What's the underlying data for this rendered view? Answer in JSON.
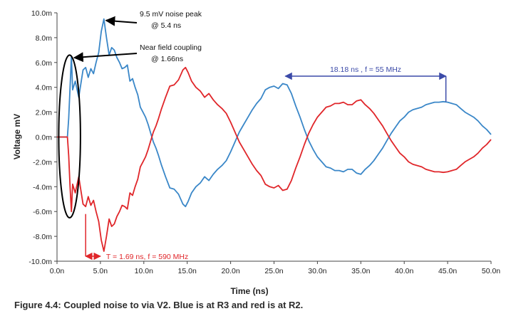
{
  "caption": "Figure 4.4: Coupled noise to via V2. Blue is at R3 and red is at R2.",
  "colors": {
    "blue": "#3a87c8",
    "red": "#e0262a",
    "period_blue": "#3b4aa8",
    "annotation": "#000000"
  },
  "chart_data": {
    "type": "line",
    "xlabel": "Time (ns)",
    "ylabel": "Voltage mV",
    "xlim": [
      0,
      50
    ],
    "ylim": [
      -10,
      10
    ],
    "x_ticks": [
      0,
      5,
      10,
      15,
      20,
      25,
      30,
      35,
      40,
      45,
      50
    ],
    "x_tick_labels": [
      "0.0n",
      "5.0n",
      "10.0n",
      "15.0n",
      "20.0n",
      "25.0n",
      "30.0n",
      "35.0n",
      "40.0n",
      "45.0n",
      "50.0n"
    ],
    "y_ticks": [
      -10,
      -8,
      -6,
      -4,
      -2,
      0,
      2,
      4,
      6,
      8,
      10
    ],
    "y_tick_labels": [
      "-10.0m",
      "-8.0m",
      "-6.0m",
      "-4.0m",
      "-2.0m",
      "0.0m",
      "2.0m",
      "4.0m",
      "6.0m",
      "8.0m",
      "10.0m"
    ],
    "grid": false,
    "series": [
      {
        "color": "#3a87c8",
        "x": [
          0,
          1.2,
          1.35,
          1.5,
          1.66,
          1.8,
          2.1,
          2.5,
          3.0,
          3.3,
          3.6,
          3.9,
          4.2,
          4.5,
          4.8,
          5.1,
          5.4,
          5.7,
          6.0,
          6.3,
          6.6,
          6.9,
          7.2,
          7.5,
          7.8,
          8.1,
          8.4,
          8.7,
          9.0,
          9.3,
          9.6,
          9.9,
          10.2,
          10.5,
          10.8,
          11.1,
          11.4,
          11.7,
          12.0,
          12.5,
          13.0,
          13.5,
          14.0,
          14.5,
          14.8,
          15.1,
          15.5,
          16.0,
          16.5,
          17.0,
          17.5,
          18.0,
          18.5,
          19.0,
          19.5,
          20.0,
          20.5,
          21.0,
          21.5,
          22.0,
          22.5,
          23.0,
          23.5,
          24.0,
          24.5,
          25.0,
          25.5,
          26.0,
          26.5,
          27.0,
          27.5,
          28.0,
          28.5,
          29.0,
          29.5,
          30.0,
          30.5,
          31.0,
          31.5,
          32.0,
          32.5,
          33.0,
          33.5,
          34.0,
          34.5,
          35.0,
          35.5,
          36.0,
          36.5,
          37.0,
          37.5,
          38.0,
          38.5,
          39.0,
          39.5,
          40.0,
          40.5,
          41.0,
          41.5,
          42.0,
          42.5,
          43.0,
          43.5,
          44.0,
          44.5,
          45.0,
          45.5,
          46.0,
          46.5,
          47.0,
          47.5,
          48.0,
          48.5,
          49.0,
          49.5,
          50.0
        ],
        "y": [
          0,
          0,
          1.5,
          4.0,
          6.5,
          3.8,
          4.5,
          3.2,
          5.4,
          5.6,
          4.8,
          5.5,
          5.1,
          6.0,
          6.8,
          8.5,
          9.5,
          8.0,
          6.6,
          7.2,
          7.0,
          6.4,
          6.0,
          5.5,
          5.6,
          5.8,
          4.5,
          4.7,
          4.0,
          3.4,
          2.4,
          2.0,
          1.6,
          1.0,
          0.3,
          -0.4,
          -0.9,
          -1.5,
          -2.2,
          -3.2,
          -4.1,
          -4.2,
          -4.6,
          -5.4,
          -5.6,
          -5.2,
          -4.5,
          -4.0,
          -3.7,
          -3.2,
          -3.5,
          -3.0,
          -2.6,
          -2.3,
          -1.9,
          -1.2,
          -0.4,
          0.4,
          1.0,
          1.6,
          2.2,
          2.7,
          3.1,
          3.8,
          4.0,
          4.1,
          3.9,
          4.3,
          4.2,
          3.5,
          2.5,
          1.6,
          0.6,
          -0.3,
          -1.0,
          -1.6,
          -2.0,
          -2.4,
          -2.5,
          -2.7,
          -2.7,
          -2.8,
          -2.6,
          -2.6,
          -2.9,
          -3.0,
          -2.6,
          -2.3,
          -1.9,
          -1.4,
          -0.9,
          -0.3,
          0.3,
          0.8,
          1.3,
          1.6,
          2.0,
          2.2,
          2.3,
          2.4,
          2.6,
          2.7,
          2.8,
          2.8,
          2.85,
          2.8,
          2.7,
          2.6,
          2.3,
          2.0,
          1.8,
          1.6,
          1.3,
          0.9,
          0.6,
          0.2
        ]
      },
      {
        "color": "#e0262a",
        "x": [
          0,
          1.2,
          1.35,
          1.5,
          1.66,
          1.8,
          2.1,
          2.5,
          3.0,
          3.3,
          3.6,
          3.9,
          4.2,
          4.5,
          4.8,
          5.1,
          5.4,
          5.7,
          6.0,
          6.3,
          6.6,
          6.9,
          7.2,
          7.5,
          7.8,
          8.1,
          8.4,
          8.7,
          9.0,
          9.3,
          9.6,
          9.9,
          10.2,
          10.5,
          10.8,
          11.1,
          11.4,
          11.7,
          12.0,
          12.5,
          13.0,
          13.5,
          14.0,
          14.5,
          14.8,
          15.1,
          15.5,
          16.0,
          16.5,
          17.0,
          17.5,
          18.0,
          18.5,
          19.0,
          19.5,
          20.0,
          20.5,
          21.0,
          21.5,
          22.0,
          22.5,
          23.0,
          23.5,
          24.0,
          24.5,
          25.0,
          25.5,
          26.0,
          26.5,
          27.0,
          27.5,
          28.0,
          28.5,
          29.0,
          29.5,
          30.0,
          30.5,
          31.0,
          31.5,
          32.0,
          32.5,
          33.0,
          33.5,
          34.0,
          34.5,
          35.0,
          35.5,
          36.0,
          36.5,
          37.0,
          37.5,
          38.0,
          38.5,
          39.0,
          39.5,
          40.0,
          40.5,
          41.0,
          41.5,
          42.0,
          42.5,
          43.0,
          43.5,
          44.0,
          44.5,
          45.0,
          45.5,
          46.0,
          46.5,
          47.0,
          47.5,
          48.0,
          48.5,
          49.0,
          49.5,
          50.0
        ],
        "y": [
          0,
          0,
          -1.5,
          -4.0,
          -6.0,
          -3.8,
          -4.5,
          -3.2,
          -5.4,
          -5.6,
          -4.8,
          -5.5,
          -5.1,
          -6.0,
          -6.8,
          -8.3,
          -9.2,
          -8.0,
          -6.6,
          -7.2,
          -7.0,
          -6.4,
          -6.0,
          -5.5,
          -5.6,
          -5.8,
          -4.5,
          -4.7,
          -4.0,
          -3.4,
          -2.4,
          -2.0,
          -1.6,
          -1.0,
          -0.3,
          0.4,
          0.9,
          1.5,
          2.2,
          3.2,
          4.1,
          4.2,
          4.6,
          5.4,
          5.6,
          5.2,
          4.5,
          4.0,
          3.7,
          3.2,
          3.5,
          3.0,
          2.6,
          2.3,
          1.9,
          1.2,
          0.4,
          -0.4,
          -1.0,
          -1.6,
          -2.2,
          -2.7,
          -3.1,
          -3.8,
          -4.0,
          -4.1,
          -3.9,
          -4.3,
          -4.2,
          -3.5,
          -2.5,
          -1.6,
          -0.6,
          0.3,
          1.0,
          1.6,
          2.0,
          2.4,
          2.5,
          2.7,
          2.7,
          2.8,
          2.6,
          2.6,
          2.9,
          3.0,
          2.6,
          2.3,
          1.9,
          1.4,
          0.9,
          0.3,
          -0.3,
          -0.8,
          -1.3,
          -1.6,
          -2.0,
          -2.2,
          -2.3,
          -2.4,
          -2.6,
          -2.7,
          -2.8,
          -2.8,
          -2.85,
          -2.8,
          -2.7,
          -2.6,
          -2.3,
          -2.0,
          -1.8,
          -1.6,
          -1.3,
          -0.9,
          -0.6,
          -0.2
        ]
      }
    ],
    "annotations": {
      "noise_peak": {
        "line1": "9.5 mV noise peak",
        "line2": "@ 5.4 ns",
        "x": 5.4,
        "y": 9.5
      },
      "near_field": {
        "line1": "Near field coupling",
        "line2": "@ 1.66ns",
        "x": 1.66,
        "y": 6.5,
        "ellipse_x_range": [
          0.2,
          2.7
        ],
        "ellipse_y_range": [
          -6.5,
          6.6
        ]
      },
      "period_blue": {
        "label": "18.18 ns , f = 55 MHz",
        "x_start": 26.3,
        "x_end": 44.8,
        "y": 4.9,
        "marker_y": 2.85
      },
      "period_red": {
        "label": "T = 1.69 ns, f = 590 MHz",
        "x_start": 3.3,
        "x_end": 5.0,
        "y": -9.6,
        "marker_top": -6.2
      }
    }
  }
}
